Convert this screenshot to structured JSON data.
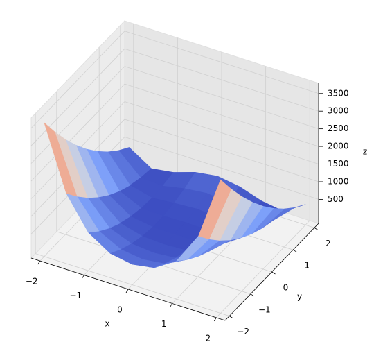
{
  "chart_data": {
    "type": "surface",
    "x": [
      -2,
      -1.5,
      -1,
      -0.5,
      0,
      0.5,
      1,
      1.5,
      2
    ],
    "y": [
      -2,
      -1.5,
      -1,
      -0.5,
      0,
      0.5,
      1,
      1.5,
      2
    ],
    "z": [
      [
        3609,
        1812.5,
        904,
        508.5,
        401,
        506.5,
        900,
        1806.5,
        3601
      ],
      [
        3034,
        1412.5,
        629,
        308.5,
        226,
        306.5,
        625,
        1406.5,
        3026
      ],
      [
        2509,
        1062.5,
        404,
        158.5,
        101,
        156.5,
        400,
        1056.5,
        2501
      ],
      [
        2034,
        762.5,
        229,
        58.5,
        26,
        56.5,
        225,
        756.5,
        2026
      ],
      [
        1609,
        512.5,
        104,
        8.5,
        1,
        6.5,
        100,
        506.5,
        1601
      ],
      [
        1234,
        312.5,
        29,
        8.5,
        26,
        6.5,
        25,
        306.5,
        1226
      ],
      [
        909,
        162.5,
        4,
        58.5,
        101,
        56.5,
        0,
        156.5,
        901
      ],
      [
        634,
        62.5,
        29,
        158.5,
        226,
        156.5,
        25,
        56.5,
        626
      ],
      [
        409,
        12.5,
        104,
        308.5,
        401,
        306.5,
        100,
        6.5,
        401
      ]
    ],
    "xlim": [
      -2.2,
      2.2
    ],
    "ylim": [
      -2.2,
      2.2
    ],
    "zlim": [
      -180,
      3790
    ],
    "xticks": [
      {
        "value": -2,
        "label": "−2"
      },
      {
        "value": -1,
        "label": "−1"
      },
      0,
      1,
      2
    ],
    "yticks": [
      {
        "value": -2,
        "label": "−2"
      },
      {
        "value": -1,
        "label": "−1"
      },
      0,
      1,
      2
    ],
    "zticks": [
      500,
      1000,
      1500,
      2000,
      2500,
      3000,
      3500
    ],
    "xlabel": "x",
    "ylabel": "y",
    "zlabel": "z",
    "colormap": "coolwarm",
    "grid": true
  }
}
